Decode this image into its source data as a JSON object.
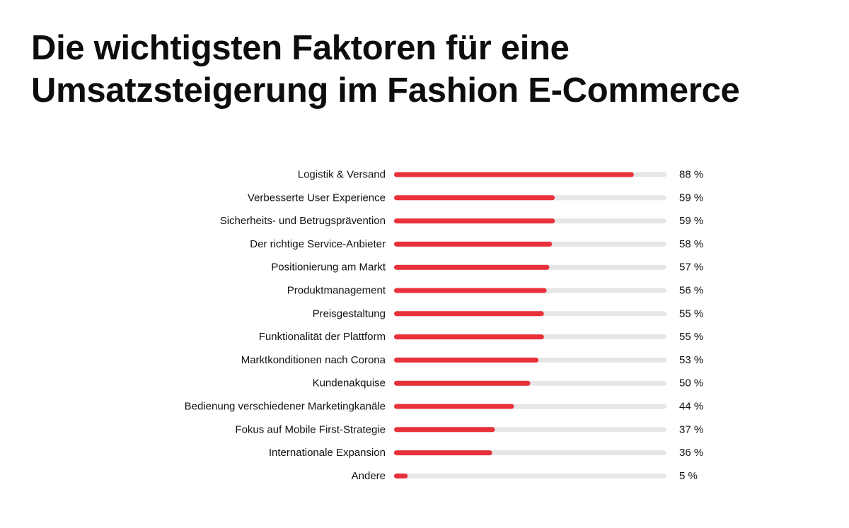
{
  "title": {
    "line1": "Die wichtigsten Faktoren für eine",
    "line2": "Umsatzsteigerung im Fashion E-Commerce"
  },
  "colors": {
    "bar": "#e8313a",
    "track": "#e6e6e6",
    "text": "#111111"
  },
  "chart_data": {
    "type": "bar",
    "orientation": "horizontal",
    "title": "Die wichtigsten Faktoren für eine Umsatzsteigerung im Fashion E-Commerce",
    "xlabel": "",
    "ylabel": "",
    "xlim": [
      0,
      100
    ],
    "unit": "%",
    "grid": false,
    "categories": [
      "Logistik & Versand",
      "Verbesserte User Experience",
      "Sicherheits- und Betrugsprävention",
      "Der richtige Service-Anbieter",
      "Positionierung am Markt",
      "Produktmanagement",
      "Preisgestaltung",
      "Funktionalität der Plattform",
      "Marktkonditionen nach Corona",
      "Kundenakquise",
      "Bedienung verschiedener Marketingkanäle",
      "Fokus auf Mobile First-Strategie",
      "Internationale Expansion",
      "Andere"
    ],
    "values": [
      88,
      59,
      59,
      58,
      57,
      56,
      55,
      55,
      53,
      50,
      44,
      37,
      36,
      5
    ],
    "value_labels": [
      "88 %",
      "59 %",
      "59 %",
      "58 %",
      "57 %",
      "56 %",
      "55 %",
      "55 %",
      "53 %",
      "50 %",
      "44 %",
      "37 %",
      "36 %",
      "5 %"
    ]
  }
}
